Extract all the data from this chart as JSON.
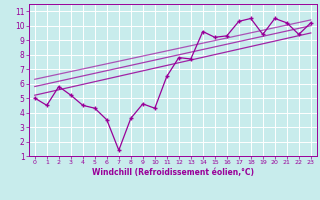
{
  "xlabel": "Windchill (Refroidissement éolien,°C)",
  "xlim": [
    -0.5,
    23.5
  ],
  "ylim": [
    1,
    11.5
  ],
  "xticks": [
    0,
    1,
    2,
    3,
    4,
    5,
    6,
    7,
    8,
    9,
    10,
    11,
    12,
    13,
    14,
    15,
    16,
    17,
    18,
    19,
    20,
    21,
    22,
    23
  ],
  "yticks": [
    1,
    2,
    3,
    4,
    5,
    6,
    7,
    8,
    9,
    10,
    11
  ],
  "bg_color": "#c8ecec",
  "line_color": "#990099",
  "data_x": [
    0,
    1,
    2,
    3,
    4,
    5,
    6,
    7,
    8,
    9,
    10,
    11,
    12,
    13,
    14,
    15,
    16,
    17,
    18,
    19,
    20,
    21,
    22,
    23
  ],
  "data_y": [
    5.0,
    4.5,
    5.8,
    5.2,
    4.5,
    4.3,
    3.5,
    1.4,
    3.6,
    4.6,
    4.3,
    6.5,
    7.8,
    7.7,
    9.6,
    9.2,
    9.3,
    10.3,
    10.5,
    9.4,
    10.5,
    10.2,
    9.4,
    10.2
  ],
  "trend1_x": [
    0,
    23
  ],
  "trend1_y": [
    5.2,
    9.5
  ],
  "trend2_x": [
    0,
    23
  ],
  "trend2_y": [
    5.8,
    10.0
  ],
  "trend3_x": [
    0,
    23
  ],
  "trend3_y": [
    6.3,
    10.4
  ]
}
